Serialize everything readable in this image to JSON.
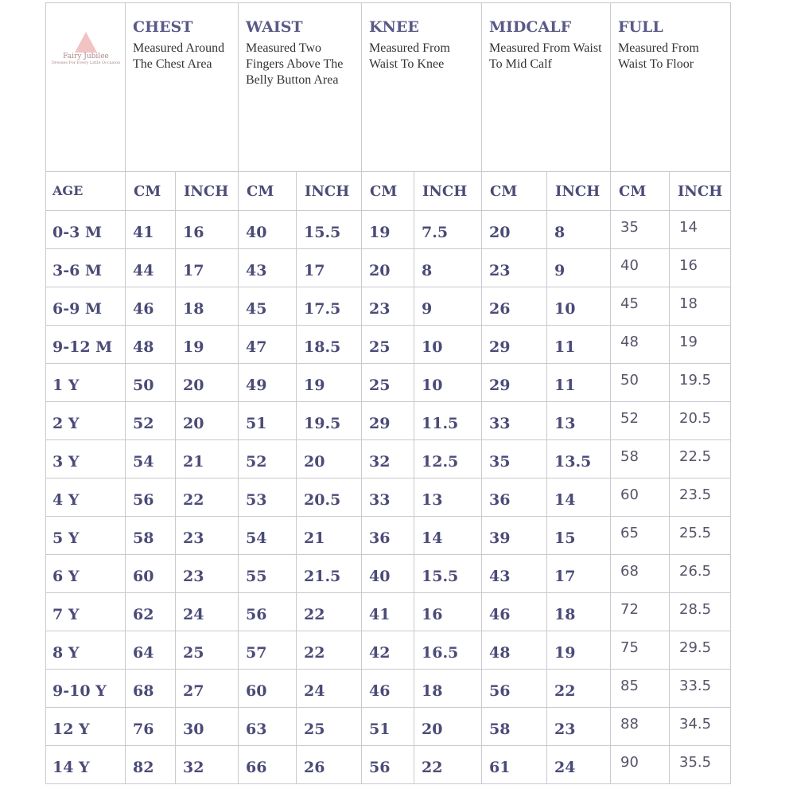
{
  "logo": {
    "name": "Fairy Jubilee",
    "tagline": "Dresses For Every Little Occasion"
  },
  "groups": [
    {
      "title": "CHEST",
      "desc": "Measured Around The Chest Area"
    },
    {
      "title": "WAIST",
      "desc": "Measured Two Fingers Above The Belly Button Area"
    },
    {
      "title": "KNEE",
      "desc": "Measured From Waist To Knee"
    },
    {
      "title": "MIDCALF",
      "desc": "Measured From Waist To Mid Calf"
    },
    {
      "title": "FULL",
      "desc": "Measured From Waist To Floor"
    }
  ],
  "subheader": [
    "AGE",
    "CM",
    "INCH",
    "CM",
    "INCH",
    "CM",
    "INCH",
    "CM",
    "INCH",
    "CM",
    "INCH"
  ],
  "rows": [
    [
      "0-3 M",
      41,
      16,
      40,
      15.5,
      19,
      7.5,
      20,
      8,
      35,
      14
    ],
    [
      "3-6 M",
      44,
      17,
      43,
      17,
      20,
      8,
      23,
      9,
      40,
      16
    ],
    [
      "6-9 M",
      46,
      18,
      45,
      17.5,
      23,
      9,
      26,
      10,
      45,
      18
    ],
    [
      "9-12 M",
      48,
      19,
      47,
      18.5,
      25,
      10,
      29,
      11,
      48,
      19
    ],
    [
      "1 Y",
      50,
      20,
      49,
      19,
      25,
      10,
      29,
      11,
      50,
      19.5
    ],
    [
      "2 Y",
      52,
      20,
      51,
      19.5,
      29,
      11.5,
      33,
      13,
      52,
      20.5
    ],
    [
      "3 Y",
      54,
      21,
      52,
      20,
      32,
      12.5,
      35,
      13.5,
      58,
      22.5
    ],
    [
      "4 Y",
      56,
      22,
      53,
      20.5,
      33,
      13,
      36,
      14,
      60,
      23.5
    ],
    [
      "5 Y",
      58,
      23,
      54,
      21,
      36,
      14,
      39,
      15,
      65,
      25.5
    ],
    [
      "6 Y",
      60,
      23,
      55,
      21.5,
      40,
      15.5,
      43,
      17,
      68,
      26.5
    ],
    [
      "7 Y",
      62,
      24,
      56,
      22,
      41,
      16,
      46,
      18,
      72,
      28.5
    ],
    [
      "8 Y",
      64,
      25,
      57,
      22,
      42,
      16.5,
      48,
      19,
      75,
      29.5
    ],
    [
      "9-10 Y",
      68,
      27,
      60,
      24,
      46,
      18,
      56,
      22,
      85,
      33.5
    ],
    [
      "12 Y",
      76,
      30,
      63,
      25,
      51,
      20,
      58,
      23,
      88,
      34.5
    ],
    [
      "14 Y",
      82,
      32,
      66,
      26,
      56,
      22,
      61,
      24,
      90,
      35.5
    ]
  ]
}
